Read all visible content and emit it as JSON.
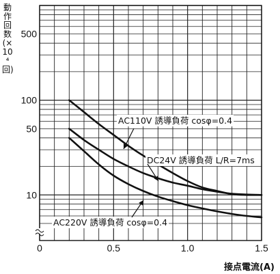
{
  "chart_data": {
    "type": "line",
    "xlabel": "接点電流(A)",
    "ylabel": "動作回数(×10⁴回)",
    "y_scale": "log",
    "xlim": [
      0,
      1.5
    ],
    "ylim_display": [
      5,
      1000
    ],
    "grid": true,
    "x_ticks": [
      {
        "value": 0,
        "label": "0"
      },
      {
        "value": 0.5,
        "label": "0.5"
      },
      {
        "value": 1.0,
        "label": "1.0"
      },
      {
        "value": 1.5,
        "label": "1.5"
      }
    ],
    "y_ticks": [
      {
        "value": 500,
        "label": "500"
      },
      {
        "value": 100,
        "label": "100"
      },
      {
        "value": 50,
        "label": "50"
      },
      {
        "value": 10,
        "label": "10"
      }
    ],
    "series": [
      {
        "name": "AC110V 誘導負荷 cosφ=0.4",
        "x": [
          0.2,
          0.3,
          0.4,
          0.5,
          0.6,
          0.7,
          0.8,
          0.9,
          1.0,
          1.1,
          1.2,
          1.3,
          1.4,
          1.5
        ],
        "y": [
          100,
          75,
          56,
          43,
          33,
          26,
          21,
          17,
          14,
          12,
          11,
          10.2,
          10,
          10
        ]
      },
      {
        "name": "DC24V 誘導負荷 L/R=7ms",
        "x": [
          0.2,
          0.3,
          0.4,
          0.5,
          0.6,
          0.7,
          0.8,
          0.9,
          1.0,
          1.1,
          1.2,
          1.3,
          1.4,
          1.5
        ],
        "y": [
          50,
          38,
          30,
          24,
          20,
          17,
          15,
          13.5,
          12.5,
          11.5,
          10.8,
          10.3,
          10.1,
          10
        ]
      },
      {
        "name": "AC220V 誘導負荷 cosφ=0.4",
        "x": [
          0.2,
          0.3,
          0.4,
          0.5,
          0.6,
          0.7,
          0.8,
          0.9,
          1.0,
          1.1,
          1.2,
          1.3,
          1.4,
          1.5
        ],
        "y": [
          40,
          29,
          21,
          16,
          13,
          11,
          9.6,
          8.6,
          7.8,
          7.2,
          6.7,
          6.3,
          6,
          5.8
        ]
      }
    ],
    "annotations": [
      {
        "text": "AC110V 誘導負荷 cosφ=0.4",
        "series": 0
      },
      {
        "text": "DC24V 誘導負荷 L/R=7ms",
        "series": 1
      },
      {
        "text": "AC220V 誘導負荷 cosφ=0.4",
        "series": 2
      }
    ],
    "y_axis_break": true
  }
}
